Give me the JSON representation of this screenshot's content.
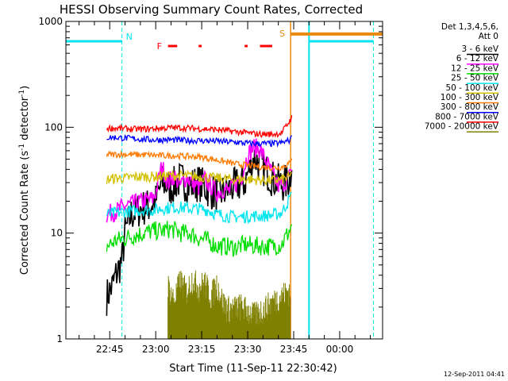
{
  "chart_data": {
    "type": "line",
    "title": "HESSI Observing Summary Count Rates, Corrected",
    "xlabel": "Start Time (11-Sep-11 22:30:42)",
    "ylabel": "Corrected Count Rate (s",
    "ylabel_sup1": "-1",
    "ylabel_mid": " detector",
    "ylabel_sup2": "-1",
    "ylabel_end": ")",
    "y_scale": "log",
    "ylim": [
      1,
      1000
    ],
    "xlim": [
      "22:30:42",
      "00:14"
    ],
    "x_ticks": [
      "22:45",
      "23:00",
      "23:15",
      "23:30",
      "23:45",
      "00:00"
    ],
    "y_ticks": [
      "1",
      "10",
      "100",
      "1000"
    ],
    "grid": false,
    "legend_placement": "right",
    "legend_header": [
      "Det 1,3,4,5,6,",
      "Att 0"
    ],
    "timestamp": "12-Sep-2011 04:41",
    "attenuator_state": {
      "value": 650,
      "color": "#00e5ee"
    },
    "flags": {
      "N": {
        "label": "N",
        "at": "22:49",
        "color": "#00e5ee"
      },
      "S": {
        "label": "S",
        "at": "23:44",
        "color": "#e88a10"
      },
      "F": {
        "label": "F",
        "color": "#ff0000"
      },
      "eclipse_end": "23:50",
      "eclipse_start": "00:11"
    },
    "flare_flags": [
      [
        "23:04",
        "23:07"
      ],
      [
        "23:14",
        "23:15"
      ],
      [
        "23:29",
        "23:30"
      ],
      [
        "23:34",
        "23:38"
      ]
    ],
    "saa_bar": {
      "from": "23:44",
      "value": 760
    },
    "data_start": "22:44",
    "data_end": "23:44",
    "series": [
      {
        "name": "3 - 6 keV",
        "color": "#000000",
        "x": [
          "22:44",
          "22:46",
          "22:47",
          "22:49",
          "22:50",
          "22:52",
          "22:55",
          "22:58",
          "23:00",
          "23:02",
          "23:05",
          "23:08",
          "23:11",
          "23:14",
          "23:17",
          "23:20",
          "23:23",
          "23:26",
          "23:29",
          "23:32",
          "23:35",
          "23:38",
          "23:41",
          "23:43",
          "23:44"
        ],
        "values": [
          2.5,
          3.2,
          4.0,
          5.5,
          10,
          15,
          17,
          18,
          20,
          30,
          27,
          32,
          28,
          30,
          26,
          23,
          25,
          28,
          30,
          52,
          42,
          33,
          29,
          30,
          36
        ]
      },
      {
        "name": "6 - 12 keV",
        "color": "#ff00ff",
        "x": [
          "22:44",
          "22:47",
          "22:50",
          "22:53",
          "22:56",
          "22:59",
          "23:00",
          "23:02",
          "23:04",
          "23:06",
          "23:08",
          "23:10",
          "23:12",
          "23:14",
          "23:16",
          "23:18",
          "23:20",
          "23:22",
          "23:24",
          "23:26",
          "23:28",
          "23:30",
          "23:32",
          "23:34",
          "23:36",
          "23:38",
          "23:40",
          "23:42",
          "23:44"
        ],
        "values": [
          15,
          16,
          18,
          19,
          20,
          21,
          24,
          43,
          30,
          35,
          28,
          34,
          30,
          27,
          32,
          28,
          24,
          26,
          25,
          29,
          34,
          55,
          65,
          62,
          48,
          36,
          28,
          30,
          35
        ]
      },
      {
        "name": "12 - 25 keV",
        "color": "#00dd00",
        "x": [
          "22:44",
          "22:47",
          "22:50",
          "22:53",
          "22:56",
          "22:59",
          "23:02",
          "23:05",
          "23:08",
          "23:11",
          "23:14",
          "23:17",
          "23:20",
          "23:23",
          "23:26",
          "23:29",
          "23:32",
          "23:35",
          "23:38",
          "23:41",
          "23:44"
        ],
        "values": [
          7.5,
          8.5,
          9,
          9.5,
          10,
          10.5,
          10.5,
          11,
          10,
          10,
          9,
          8.5,
          7.5,
          7.5,
          7.3,
          7.8,
          7.6,
          7.5,
          7.5,
          7.8,
          11
        ]
      },
      {
        "name": "25 - 50 keV",
        "color": "#00e5ee",
        "x": [
          "22:44",
          "22:47",
          "22:50",
          "22:53",
          "22:56",
          "22:59",
          "23:02",
          "23:05",
          "23:08",
          "23:11",
          "23:14",
          "23:17",
          "23:20",
          "23:23",
          "23:26",
          "23:29",
          "23:32",
          "23:35",
          "23:38",
          "23:41",
          "23:44"
        ],
        "values": [
          15,
          15.5,
          16,
          16.2,
          16.5,
          16.5,
          17,
          17.5,
          17.5,
          17,
          17,
          16.5,
          15,
          14.5,
          14.2,
          14.3,
          14.5,
          14.5,
          14.8,
          15.5,
          22
        ]
      },
      {
        "name": "50 - 100 keV",
        "color": "#d4c100",
        "x": [
          "22:44",
          "22:47",
          "22:50",
          "22:53",
          "22:56",
          "22:59",
          "23:02",
          "23:05",
          "23:08",
          "23:11",
          "23:14",
          "23:17",
          "23:20",
          "23:23",
          "23:26",
          "23:29",
          "23:32",
          "23:35",
          "23:38",
          "23:41",
          "23:44"
        ],
        "values": [
          32,
          33,
          33,
          34,
          34,
          34,
          34.5,
          35,
          35,
          34.5,
          34,
          33.5,
          33,
          32.5,
          32,
          32.5,
          32,
          31.5,
          31.5,
          32,
          34
        ]
      },
      {
        "name": "100 - 300 keV",
        "color": "#ff7a00",
        "x": [
          "22:44",
          "22:47",
          "22:50",
          "22:53",
          "22:56",
          "22:59",
          "23:02",
          "23:05",
          "23:08",
          "23:11",
          "23:14",
          "23:17",
          "23:20",
          "23:23",
          "23:26",
          "23:29",
          "23:32",
          "23:35",
          "23:38",
          "23:41",
          "23:44"
        ],
        "values": [
          55,
          55.5,
          55.5,
          55,
          55,
          54.5,
          54,
          54,
          53.5,
          53,
          52.5,
          51,
          49,
          47,
          45,
          44,
          43,
          42,
          41.5,
          42,
          46
        ]
      },
      {
        "name": "300 - 800 keV",
        "color": "#0000ff",
        "x": [
          "22:44",
          "22:47",
          "22:50",
          "22:53",
          "22:56",
          "22:59",
          "23:02",
          "23:05",
          "23:08",
          "23:11",
          "23:14",
          "23:17",
          "23:20",
          "23:23",
          "23:26",
          "23:29",
          "23:32",
          "23:35",
          "23:38",
          "23:41",
          "23:44"
        ],
        "values": [
          80,
          80,
          79,
          78,
          77,
          76,
          76,
          76,
          75.5,
          75,
          75,
          74.5,
          74,
          73,
          72,
          71,
          70,
          70,
          70,
          71,
          76
        ]
      },
      {
        "name": "800 - 7000 keV",
        "color": "#ff0000",
        "x": [
          "22:44",
          "22:47",
          "22:50",
          "22:53",
          "22:56",
          "22:59",
          "23:02",
          "23:05",
          "23:08",
          "23:11",
          "23:14",
          "23:17",
          "23:20",
          "23:23",
          "23:26",
          "23:29",
          "23:32",
          "23:35",
          "23:38",
          "23:41",
          "23:44"
        ],
        "values": [
          98,
          98,
          97,
          96,
          96,
          97,
          98,
          99,
          99,
          98,
          97,
          96,
          95,
          93,
          91,
          89,
          87,
          86,
          86,
          88,
          118
        ]
      },
      {
        "name": "7000 - 20000 keV",
        "color": "#808000",
        "x": [
          "23:04",
          "23:06",
          "23:08",
          "23:10",
          "23:12",
          "23:14",
          "23:16",
          "23:18",
          "23:20",
          "23:22",
          "23:24",
          "23:28",
          "23:32",
          "23:44"
        ],
        "values": [
          2.5,
          1.8,
          2.8,
          2.2,
          2.9,
          2.4,
          2.7,
          2.0,
          2.6,
          1.7,
          1.5,
          1.6,
          1.3,
          2.3
        ]
      }
    ]
  }
}
